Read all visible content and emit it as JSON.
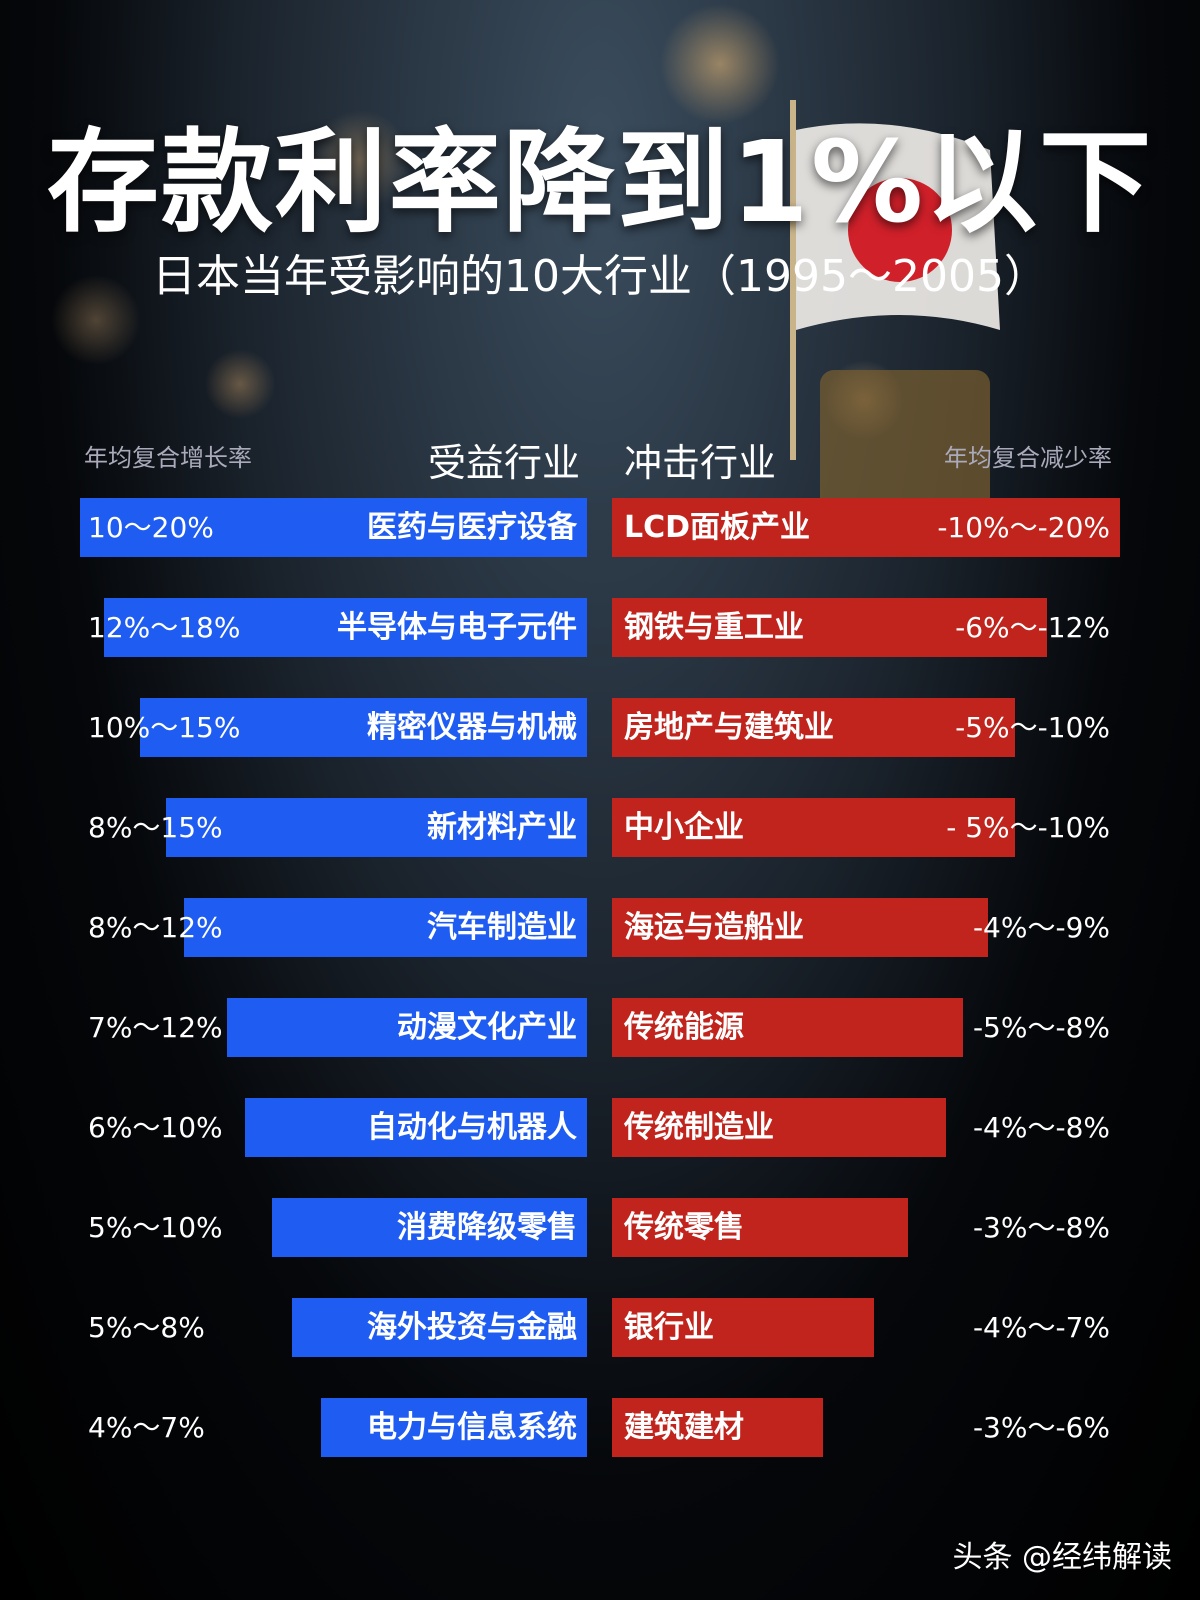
{
  "header": {
    "title": "存款利率降到1%以下",
    "subtitle": "日本当年受影响的10大行业（1995～2005）"
  },
  "columns": {
    "left_metric": "年均复合增长率",
    "left": "受益行业",
    "right": "冲击行业",
    "right_metric": "年均复合减少率"
  },
  "rows": [
    {
      "benefit": "医药与医疗设备",
      "growth": "10～20%",
      "impact": "LCD面板产业",
      "decline": "-10%～-20%"
    },
    {
      "benefit": "半导体与电子元件",
      "growth": "12%～18%",
      "impact": "钢铁与重工业",
      "decline": "-6%～-12%"
    },
    {
      "benefit": "精密仪器与机械",
      "growth": "10%～15%",
      "impact": "房地产与建筑业",
      "decline": "-5%～-10%"
    },
    {
      "benefit": "新材料产业",
      "growth": "8%～15%",
      "impact": "中小企业",
      "decline": "- 5%～-10%"
    },
    {
      "benefit": "汽车制造业",
      "growth": "8%～12%",
      "impact": "海运与造船业",
      "decline": "-4%～-9%"
    },
    {
      "benefit": "动漫文化产业",
      "growth": "7%～12%",
      "impact": "传统能源",
      "decline": "-5%～-8%"
    },
    {
      "benefit": "自动化与机器人",
      "growth": "6%～10%",
      "impact": "传统制造业",
      "decline": "-4%～-8%"
    },
    {
      "benefit": "消费降级零售",
      "growth": "5%～10%",
      "impact": "传统零售",
      "decline": "-3%～-8%"
    },
    {
      "benefit": "海外投资与金融",
      "growth": "5%～8%",
      "impact": "银行业",
      "decline": "-4%～-7%"
    },
    {
      "benefit": "电力与信息系统",
      "growth": "4%～7%",
      "impact": "建筑建材",
      "decline": "-3%～-6%"
    }
  ],
  "footer": "头条 @经纬解读"
}
